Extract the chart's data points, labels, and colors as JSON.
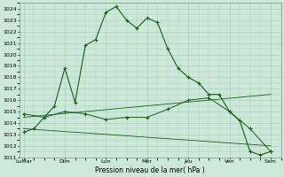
{
  "background_color": "#cce8d8",
  "grid_color": "#aacfbe",
  "line_color": "#1a5c1a",
  "title": "Pression niveau de la mer( hPa )",
  "ylim": [
    1011,
    1024.5
  ],
  "yticks": [
    1011,
    1012,
    1013,
    1014,
    1015,
    1016,
    1017,
    1018,
    1019,
    1020,
    1021,
    1022,
    1023,
    1024
  ],
  "xlabels": [
    "LuMar",
    "Dim",
    "Lun",
    "Mer",
    "Jeu",
    "Ven",
    "Sam"
  ],
  "xtick_positions": [
    0,
    2,
    4,
    6,
    8,
    10,
    12
  ],
  "line1_x": [
    0,
    0.5,
    1,
    1.5,
    2,
    2.5,
    3,
    3.5,
    4,
    4.5,
    5,
    5.5,
    6,
    6.5,
    7,
    7.5,
    8,
    8.5,
    9,
    9.5,
    10,
    10.5,
    11,
    11.5,
    12
  ],
  "line1_y": [
    1013.2,
    1013.5,
    1014.5,
    1015.5,
    1018.8,
    1015.8,
    1020.8,
    1021.3,
    1023.7,
    1024.2,
    1023.0,
    1022.3,
    1023.2,
    1022.8,
    1020.5,
    1018.8,
    1018.0,
    1017.5,
    1016.5,
    1016.5,
    1015.0,
    1014.2,
    1011.5,
    1011.2,
    1011.5
  ],
  "line2_x": [
    0,
    1,
    2,
    3,
    4,
    5,
    6,
    7,
    8,
    9,
    10,
    11,
    12
  ],
  "line2_y": [
    1014.8,
    1014.5,
    1015.0,
    1014.8,
    1014.3,
    1014.5,
    1014.5,
    1015.2,
    1016.0,
    1016.2,
    1015.0,
    1013.5,
    1011.5
  ],
  "line3_x": [
    0,
    12
  ],
  "line3_y": [
    1014.5,
    1016.5
  ],
  "line4_x": [
    0,
    12
  ],
  "line4_y": [
    1013.5,
    1012.0
  ]
}
